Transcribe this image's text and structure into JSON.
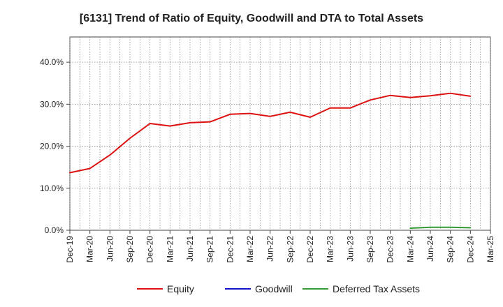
{
  "chart_data": {
    "type": "line",
    "title": "[6131]  Trend of Ratio of Equity, Goodwill and DTA to Total Assets",
    "xlabel": "",
    "ylabel": "",
    "ylim": [
      0,
      46
    ],
    "yticks": [
      "0.0%",
      "10.0%",
      "20.0%",
      "30.0%",
      "40.0%"
    ],
    "ytick_values": [
      0,
      10,
      20,
      30,
      40
    ],
    "categories": [
      "Dec-19",
      "Mar-20",
      "Jun-20",
      "Sep-20",
      "Dec-20",
      "Mar-21",
      "Jun-21",
      "Sep-21",
      "Dec-21",
      "Mar-22",
      "Jun-22",
      "Sep-22",
      "Dec-22",
      "Mar-23",
      "Jun-23",
      "Sep-23",
      "Dec-23",
      "Mar-24",
      "Jun-24",
      "Sep-24",
      "Dec-24",
      "Mar-25"
    ],
    "grid": true,
    "legend_position": "bottom",
    "series": [
      {
        "name": "Equity",
        "color": "#dd1111",
        "values": [
          13.7,
          14.7,
          17.9,
          21.9,
          25.4,
          24.8,
          25.6,
          25.8,
          27.6,
          27.8,
          27.1,
          28.1,
          26.9,
          29.1,
          29.1,
          31.0,
          32.1,
          31.6,
          32.0,
          32.6,
          31.9,
          null
        ]
      },
      {
        "name": "Goodwill",
        "color": "#1111cc",
        "values": [
          null,
          null,
          null,
          null,
          null,
          null,
          null,
          null,
          null,
          null,
          null,
          null,
          null,
          null,
          null,
          null,
          null,
          null,
          null,
          null,
          null,
          null
        ]
      },
      {
        "name": "Deferred Tax Assets",
        "color": "#339933",
        "values": [
          null,
          null,
          null,
          null,
          null,
          null,
          null,
          null,
          null,
          null,
          null,
          null,
          null,
          null,
          null,
          null,
          null,
          0.5,
          0.7,
          0.7,
          0.6,
          null
        ]
      }
    ]
  }
}
